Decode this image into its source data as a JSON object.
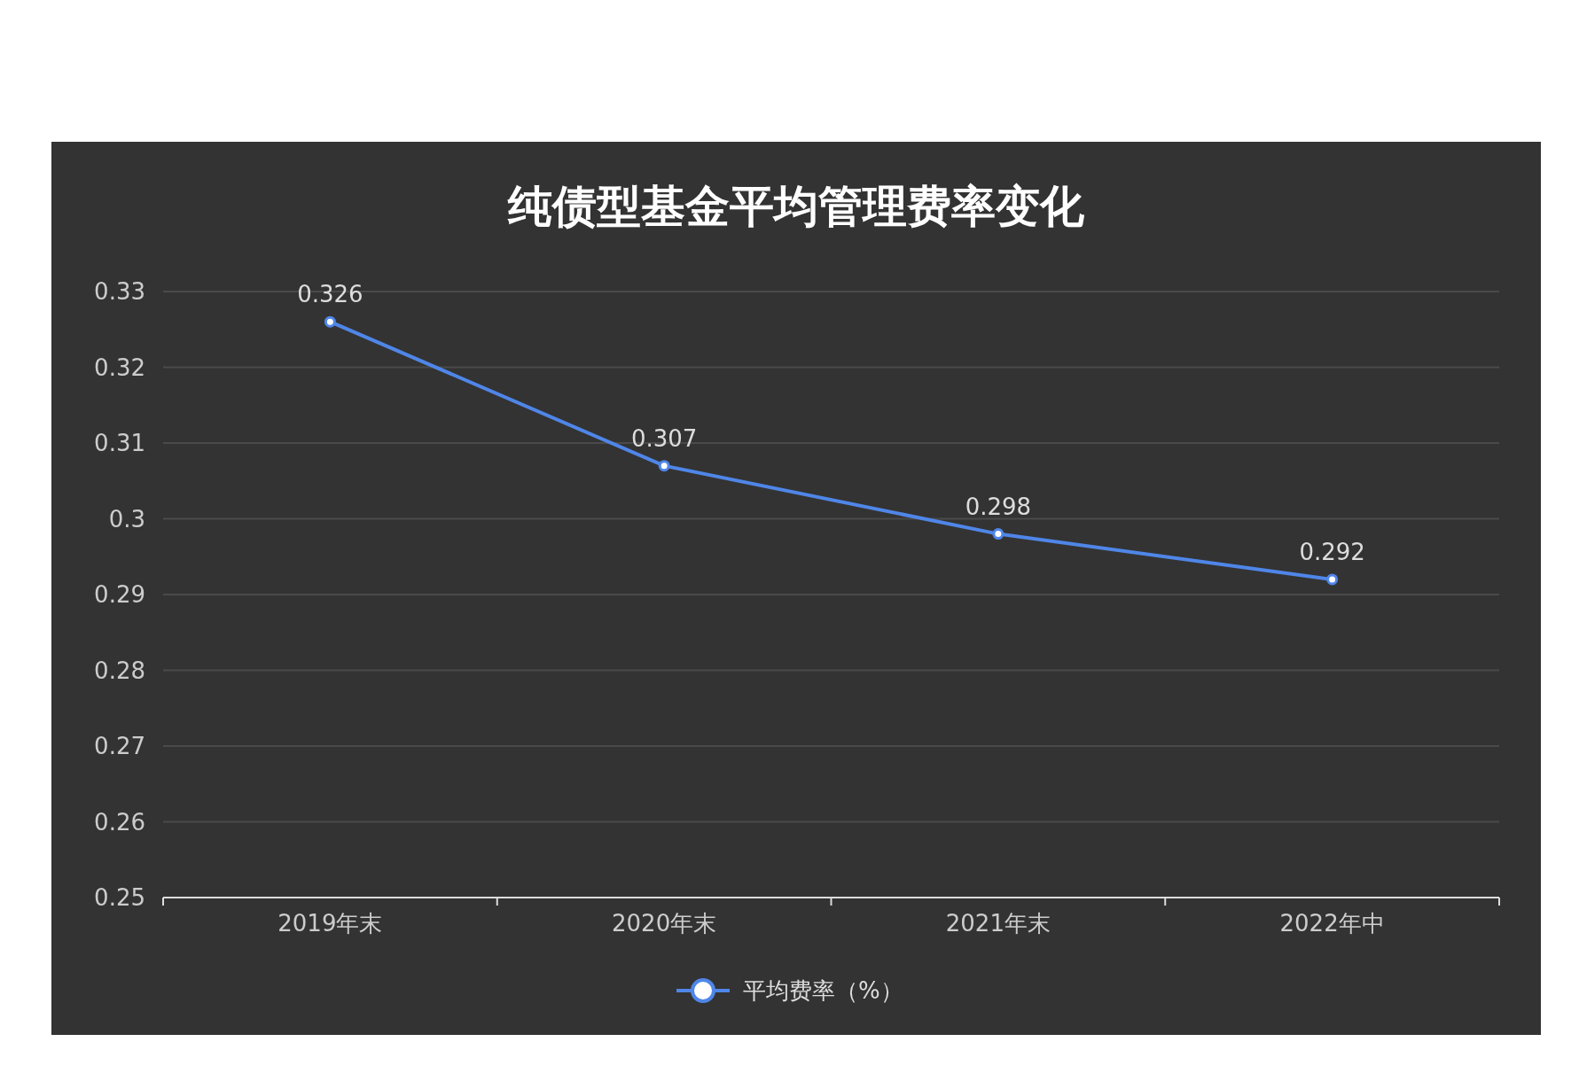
{
  "chart_data": {
    "type": "line",
    "title": "纯债型基金平均管理费率变化",
    "categories": [
      "2019年末",
      "2020年末",
      "2021年末",
      "2022年中"
    ],
    "series": [
      {
        "name": "平均费率（%）",
        "color": "#4f86e8",
        "values": [
          0.326,
          0.307,
          0.298,
          0.292
        ]
      }
    ],
    "ylim": [
      0.25,
      0.33
    ],
    "yticks": [
      0.25,
      0.26,
      0.27,
      0.28,
      0.29,
      0.3,
      0.31,
      0.32,
      0.33
    ],
    "grid": "y",
    "legend": "bottom",
    "marker": "circle",
    "line_style": "solid",
    "data_labels": true
  }
}
